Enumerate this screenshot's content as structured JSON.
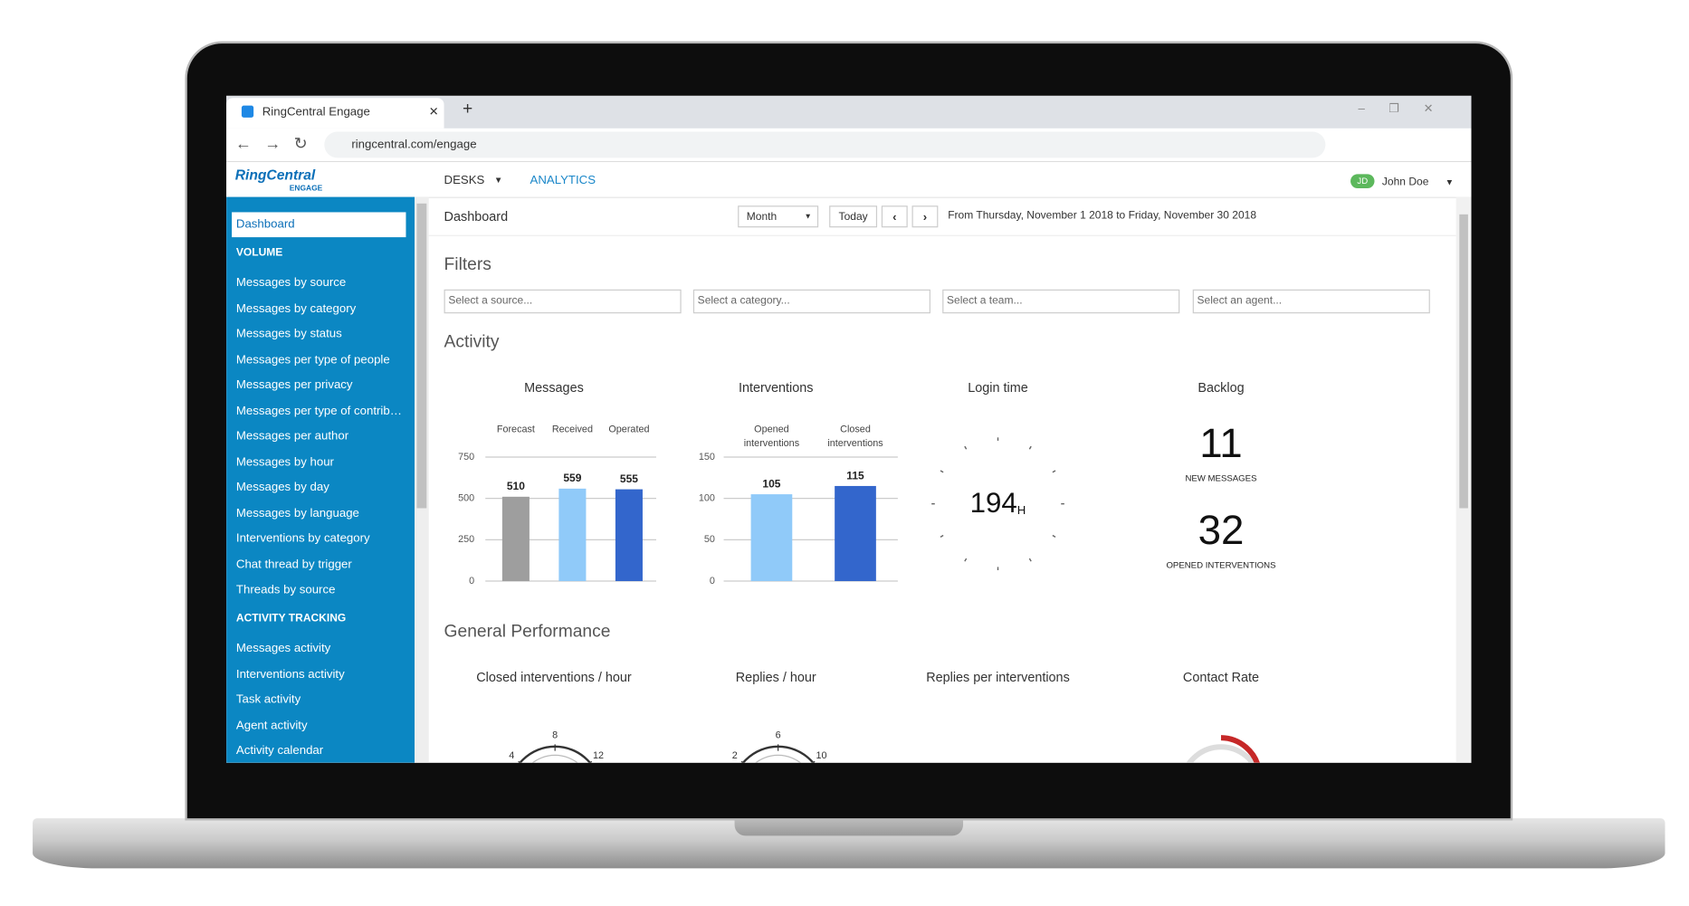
{
  "browser": {
    "tab_title": "RingCentral Engage",
    "url": "ringcentral.com/engage"
  },
  "app": {
    "logo": "RingCentral",
    "logo_sub": "ENGAGE",
    "nav": [
      "DESKS",
      "ANALYTICS"
    ],
    "user_initials": "JD",
    "user_name": "John Doe"
  },
  "sidebar": {
    "active": "Dashboard",
    "sections": [
      {
        "title": "VOLUME",
        "items": [
          "Messages by source",
          "Messages by category",
          "Messages by status",
          "Messages per type of people",
          "Messages per privacy",
          "Messages per type of contrib…",
          "Messages per author",
          "Messages by hour",
          "Messages by day",
          "Messages by language",
          "Interventions by category",
          "Chat thread by trigger",
          "Threads by source"
        ]
      },
      {
        "title": "ACTIVITY TRACKING",
        "items": [
          "Messages activity",
          "Interventions activity",
          "Task activity",
          "Agent activity",
          "Activity calendar"
        ]
      }
    ]
  },
  "toolbar": {
    "title": "Dashboard",
    "period": "Month",
    "today": "Today",
    "range": "From Thursday, November 1 2018 to Friday, November 30 2018"
  },
  "filters": {
    "title": "Filters",
    "placeholders": [
      "Select a source...",
      "Select a category...",
      "Select a team...",
      "Select an agent..."
    ]
  },
  "activity": {
    "title": "Activity"
  },
  "chart_data": [
    {
      "type": "bar",
      "title": "Messages",
      "categories": [
        "Forecast",
        "Received",
        "Operated"
      ],
      "values": [
        510,
        559,
        555
      ],
      "colors": [
        "#9e9e9e",
        "#90caf9",
        "#3366cc"
      ],
      "ylim": [
        0,
        750
      ],
      "yticks": [
        0,
        250,
        500,
        750
      ],
      "grid": true
    },
    {
      "type": "bar",
      "title": "Interventions",
      "categories": [
        "Opened interventions",
        "Closed interventions"
      ],
      "values": [
        105,
        115
      ],
      "colors": [
        "#90caf9",
        "#3366cc"
      ],
      "ylim": [
        0,
        150
      ],
      "yticks": [
        0,
        50,
        100,
        150
      ],
      "grid": true
    }
  ],
  "kpis": {
    "login_time": {
      "title": "Login time",
      "value": 194,
      "unit": "H"
    },
    "backlog": {
      "title": "Backlog",
      "items": [
        {
          "value": 11,
          "label": "NEW MESSAGES"
        },
        {
          "value": 32,
          "label": "OPENED INTERVENTIONS"
        }
      ]
    }
  },
  "performance": {
    "title": "General Performance",
    "widgets": [
      "Closed interventions / hour",
      "Replies / hour",
      "Replies per interventions",
      "Contact Rate"
    ],
    "gauges": [
      {
        "ticks": [
          4,
          8,
          12
        ]
      },
      {
        "ticks": [
          2,
          6,
          10
        ]
      }
    ]
  }
}
